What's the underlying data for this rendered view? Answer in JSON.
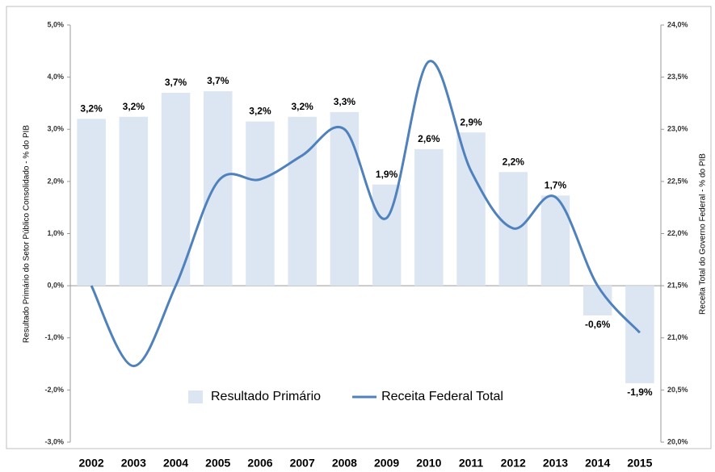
{
  "chart_data": {
    "type": "bar",
    "y_label": "Resultado Primário do Setor Público Consolidado - % do PIB",
    "y2_label": "Receita Total do Governo Federal - % do PIB",
    "categories": [
      "2002",
      "2003",
      "2004",
      "2005",
      "2006",
      "2007",
      "2008",
      "2009",
      "2010",
      "2011",
      "2012",
      "2013",
      "2014",
      "2015"
    ],
    "series": [
      {
        "name": "Resultado Primário",
        "type": "bar",
        "color": "#dce6f2",
        "axis": "y",
        "values": [
          3.2,
          3.24,
          3.7,
          3.73,
          3.15,
          3.24,
          3.33,
          1.94,
          2.62,
          2.94,
          2.18,
          1.73,
          -0.57,
          -1.87
        ],
        "value_labels": [
          "3,2%",
          "3,2%",
          "3,7%",
          "3,7%",
          "3,2%",
          "3,2%",
          "3,3%",
          "1,9%",
          "2,6%",
          "2,9%",
          "2,2%",
          "1,7%",
          "-0,6%",
          "-1,9%"
        ]
      },
      {
        "name": "Receita Federal Total",
        "type": "line",
        "color": "#4f81bd",
        "axis": "y2",
        "values": [
          21.5,
          20.73,
          21.5,
          22.5,
          22.52,
          22.75,
          23.0,
          22.15,
          23.65,
          22.6,
          22.05,
          22.35,
          21.5,
          21.05
        ]
      }
    ],
    "ylim": [
      -3,
      5
    ],
    "yticks": [
      {
        "value": -3,
        "label": "-3,0%"
      },
      {
        "value": -2,
        "label": "-2,0%"
      },
      {
        "value": -1,
        "label": "-1,0%"
      },
      {
        "value": 0,
        "label": "0,0%"
      },
      {
        "value": 1,
        "label": "1,0%"
      },
      {
        "value": 2,
        "label": "2,0%"
      },
      {
        "value": 3,
        "label": "3,0%"
      },
      {
        "value": 4,
        "label": "4,0%"
      },
      {
        "value": 5,
        "label": "5,0%"
      }
    ],
    "y2lim": [
      20,
      24
    ],
    "y2ticks": [
      {
        "value": 20,
        "label": "20,0%"
      },
      {
        "value": 20.5,
        "label": "20,5%"
      },
      {
        "value": 21,
        "label": "21,0%"
      },
      {
        "value": 21.5,
        "label": "21,5%"
      },
      {
        "value": 22,
        "label": "22,0%"
      },
      {
        "value": 22.5,
        "label": "22,5%"
      },
      {
        "value": 23,
        "label": "23,0%"
      },
      {
        "value": 23.5,
        "label": "23,5%"
      },
      {
        "value": 24,
        "label": "24,0%"
      }
    ],
    "grid": false,
    "legend": "lower center"
  }
}
